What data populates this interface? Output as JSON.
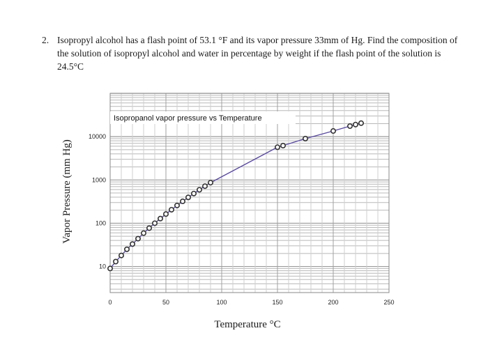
{
  "question": {
    "number": "2.",
    "text": "Isopropyl alcohol has a flash point of 53.1 °F and its vapor pressure 33mm of Hg. Find the composition of the solution of isopropyl alcohol and water in percentage by weight if the flash point of the solution is 24.5°C"
  },
  "chart_data": {
    "type": "scatter",
    "title": "Isopropanol vapor pressure vs Temperature",
    "xlabel": "Temperature °C",
    "ylabel": "Vapor Pressure (mm Hg)",
    "xlim": [
      0,
      250
    ],
    "ylim": [
      2.5,
      100000
    ],
    "yscale": "log",
    "grid": true,
    "x_ticks": [
      "0",
      "50",
      "100",
      "150",
      "200",
      "250"
    ],
    "y_ticks": [
      "10",
      "100",
      "1000",
      "10000"
    ],
    "x_tick_values": [
      0,
      50,
      100,
      150,
      200,
      250
    ],
    "y_tick_values": [
      10,
      100,
      1000,
      10000
    ],
    "series": [
      {
        "line_color": "#5a4aa0",
        "marker_color": "#333333",
        "x": [
          0,
          5,
          10,
          15,
          20,
          25,
          30,
          35,
          40,
          45,
          50,
          55,
          60,
          65,
          70,
          75,
          80,
          85,
          90,
          150,
          155,
          175,
          200,
          215,
          220,
          225
        ],
        "y": [
          9,
          13,
          18,
          25,
          33,
          44,
          59,
          77,
          100,
          128,
          163,
          205,
          257,
          320,
          395,
          485,
          592,
          718,
          865,
          5700,
          6200,
          9000,
          13500,
          17500,
          19000,
          20500
        ]
      }
    ]
  }
}
